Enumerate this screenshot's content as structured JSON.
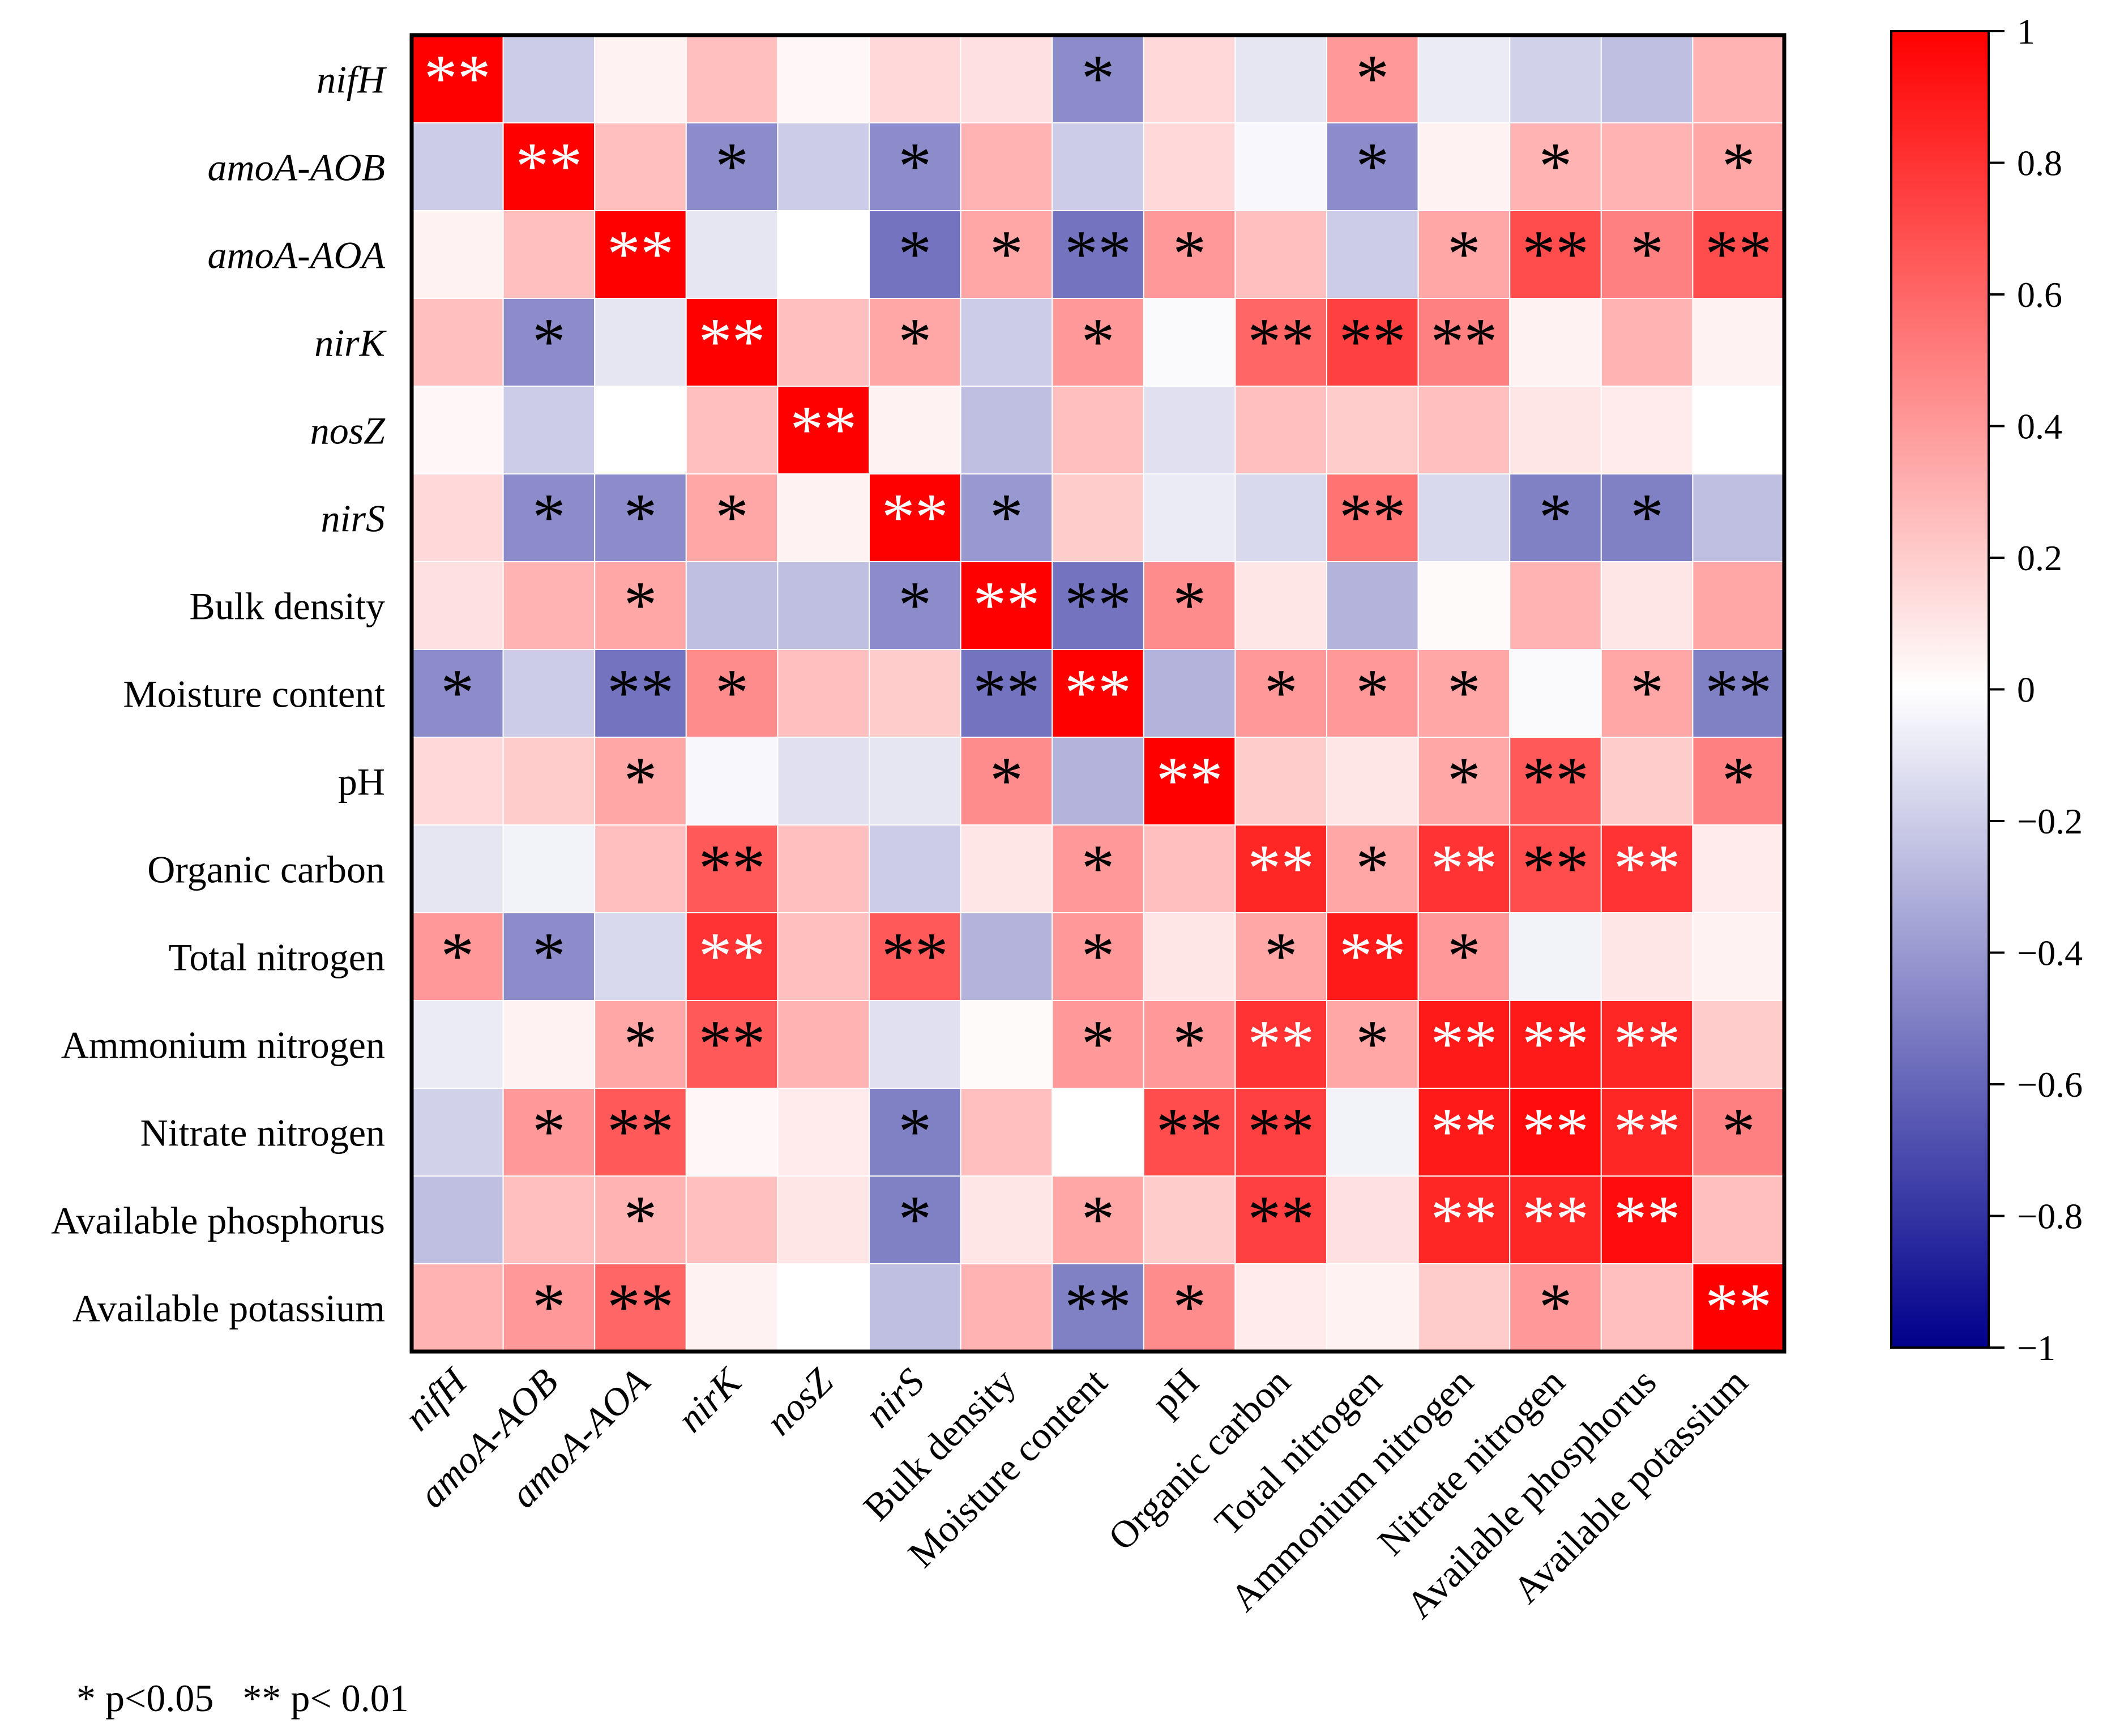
{
  "chart_data": {
    "type": "heatmap",
    "rows": [
      {
        "label": "nifH",
        "italic": true
      },
      {
        "label": "amoA-AOB",
        "italic": true
      },
      {
        "label": "amoA-AOA",
        "italic": true
      },
      {
        "label": "nirK",
        "italic": true
      },
      {
        "label": "nosZ",
        "italic": true
      },
      {
        "label": "nirS",
        "italic": true
      },
      {
        "label": "Bulk density",
        "italic": false
      },
      {
        "label": "Moisture content",
        "italic": false
      },
      {
        "label": "pH",
        "italic": false
      },
      {
        "label": "Organic carbon",
        "italic": false
      },
      {
        "label": "Total nitrogen",
        "italic": false
      },
      {
        "label": "Ammonium nitrogen",
        "italic": false
      },
      {
        "label": "Nitrate nitrogen",
        "italic": false
      },
      {
        "label": "Available phosphorus",
        "italic": false
      },
      {
        "label": "Available potassium",
        "italic": false
      }
    ],
    "values": [
      [
        1.0,
        -0.2,
        0.05,
        0.25,
        0.03,
        0.15,
        0.12,
        -0.45,
        0.15,
        -0.1,
        0.4,
        -0.08,
        -0.18,
        -0.25,
        0.3
      ],
      [
        -0.2,
        1.0,
        0.25,
        -0.45,
        -0.2,
        -0.45,
        0.3,
        -0.2,
        0.15,
        -0.03,
        -0.45,
        0.05,
        0.3,
        0.3,
        0.35
      ],
      [
        0.05,
        0.25,
        1.0,
        -0.1,
        0.0,
        -0.55,
        0.35,
        -0.55,
        0.4,
        0.25,
        -0.2,
        0.35,
        0.7,
        0.5,
        0.7
      ],
      [
        0.25,
        -0.45,
        -0.1,
        1.0,
        0.25,
        0.35,
        -0.2,
        0.4,
        -0.02,
        0.6,
        0.75,
        0.5,
        0.05,
        0.3,
        0.05
      ],
      [
        0.03,
        -0.2,
        0.0,
        0.25,
        1.0,
        0.05,
        -0.25,
        0.25,
        -0.12,
        0.25,
        0.2,
        0.25,
        0.1,
        0.08,
        0.0
      ],
      [
        0.15,
        -0.45,
        -0.45,
        0.35,
        0.05,
        1.0,
        -0.4,
        0.2,
        -0.08,
        -0.15,
        0.55,
        -0.15,
        -0.5,
        -0.5,
        -0.25
      ],
      [
        0.12,
        0.3,
        0.35,
        -0.25,
        -0.25,
        -0.45,
        1.0,
        -0.55,
        0.45,
        0.1,
        -0.3,
        0.02,
        0.3,
        0.1,
        0.35
      ],
      [
        -0.45,
        -0.2,
        -0.55,
        0.45,
        0.25,
        0.2,
        -0.55,
        1.0,
        -0.3,
        0.4,
        0.4,
        0.35,
        -0.02,
        0.35,
        -0.5
      ],
      [
        0.15,
        0.2,
        0.35,
        -0.03,
        -0.12,
        -0.1,
        0.45,
        -0.3,
        1.0,
        0.2,
        0.1,
        0.35,
        0.65,
        0.2,
        0.5
      ],
      [
        -0.1,
        -0.05,
        0.25,
        0.65,
        0.25,
        -0.2,
        0.1,
        0.4,
        0.25,
        0.85,
        0.35,
        0.8,
        0.7,
        0.8,
        0.08
      ],
      [
        0.4,
        -0.45,
        -0.15,
        0.8,
        0.25,
        0.65,
        -0.3,
        0.4,
        0.1,
        0.35,
        0.9,
        0.4,
        -0.05,
        0.1,
        0.05
      ],
      [
        -0.08,
        0.05,
        0.35,
        0.65,
        0.3,
        -0.12,
        0.02,
        0.4,
        0.4,
        0.8,
        0.35,
        0.9,
        0.9,
        0.85,
        0.2
      ],
      [
        -0.18,
        0.4,
        0.65,
        0.03,
        0.08,
        -0.5,
        0.25,
        0.0,
        0.7,
        0.75,
        -0.05,
        0.9,
        0.95,
        0.85,
        0.5
      ],
      [
        -0.25,
        0.25,
        0.3,
        0.25,
        0.1,
        -0.5,
        0.1,
        0.35,
        0.2,
        0.75,
        0.12,
        0.85,
        0.85,
        0.95,
        0.25
      ],
      [
        0.3,
        0.4,
        0.6,
        0.05,
        0.0,
        -0.25,
        0.3,
        -0.5,
        0.45,
        0.08,
        0.05,
        0.2,
        0.4,
        0.25,
        1.0
      ]
    ],
    "significance": [
      [
        "**",
        "",
        "",
        "",
        "",
        "",
        "",
        "*",
        "",
        "",
        "*",
        "",
        "",
        "",
        ""
      ],
      [
        "",
        "**",
        "",
        "*",
        "",
        "*",
        "",
        "",
        "",
        "",
        "*",
        "",
        "*",
        "",
        "*"
      ],
      [
        "",
        "",
        "**",
        "",
        "",
        "*",
        "*",
        "**",
        "*",
        "",
        "",
        "*",
        "**",
        "*",
        "**"
      ],
      [
        "",
        "*",
        "",
        "**",
        "",
        "*",
        "",
        "*",
        "",
        "**",
        "**",
        "**",
        "",
        "",
        ""
      ],
      [
        "",
        "",
        "",
        "",
        "**",
        "",
        "",
        "",
        "",
        "",
        "",
        "",
        "",
        "",
        ""
      ],
      [
        "",
        "*",
        "*",
        "*",
        "",
        "**",
        "*",
        "",
        "",
        "",
        "**",
        "",
        "*",
        "*",
        ""
      ],
      [
        "",
        "",
        "*",
        "",
        "",
        "*",
        "**",
        "**",
        "*",
        "",
        "",
        "",
        "",
        "",
        ""
      ],
      [
        "*",
        "",
        "**",
        "*",
        "",
        "",
        "**",
        "**",
        "",
        "*",
        "*",
        "*",
        "",
        "*",
        "**"
      ],
      [
        "",
        "",
        "*",
        "",
        "",
        "",
        "*",
        "",
        "**",
        "",
        "",
        "*",
        "**",
        "",
        "*"
      ],
      [
        "",
        "",
        "",
        "**",
        "",
        "",
        "",
        "*",
        "",
        "**",
        "*",
        "**",
        "**",
        "**",
        ""
      ],
      [
        "*",
        "*",
        "",
        "**",
        "",
        "**",
        "",
        "*",
        "",
        "*",
        "**",
        "*",
        "",
        "",
        ""
      ],
      [
        "",
        "",
        "*",
        "**",
        "",
        "",
        "",
        "*",
        "*",
        "**",
        "*",
        "**",
        "**",
        "**",
        ""
      ],
      [
        "",
        "*",
        "**",
        "",
        "",
        "*",
        "",
        "",
        "**",
        "**",
        "",
        "**",
        "**",
        "**",
        "*"
      ],
      [
        "",
        "",
        "*",
        "",
        "",
        "*",
        "",
        "*",
        "",
        "**",
        "",
        "**",
        "**",
        "**",
        ""
      ],
      [
        "",
        "*",
        "**",
        "",
        "",
        "",
        "",
        "**",
        "*",
        "",
        "",
        "",
        "*",
        "",
        "**"
      ]
    ],
    "colorbar": {
      "min": -1,
      "max": 1,
      "ticks": [
        1,
        0.8,
        0.6,
        0.4,
        0.2,
        0,
        -0.2,
        -0.4,
        -0.6,
        -0.8,
        -1
      ],
      "tick_labels": [
        "1",
        "0.8",
        "0.6",
        "0.4",
        "0.2",
        "0",
        "−0.2",
        "−0.4",
        "−0.6",
        "−0.8",
        "−1"
      ],
      "colors": {
        "negative": "#00008b",
        "mid": "#ffffff",
        "positive": "#ff0000"
      }
    }
  },
  "footnote": "* p<0.05   ** p< 0.01"
}
